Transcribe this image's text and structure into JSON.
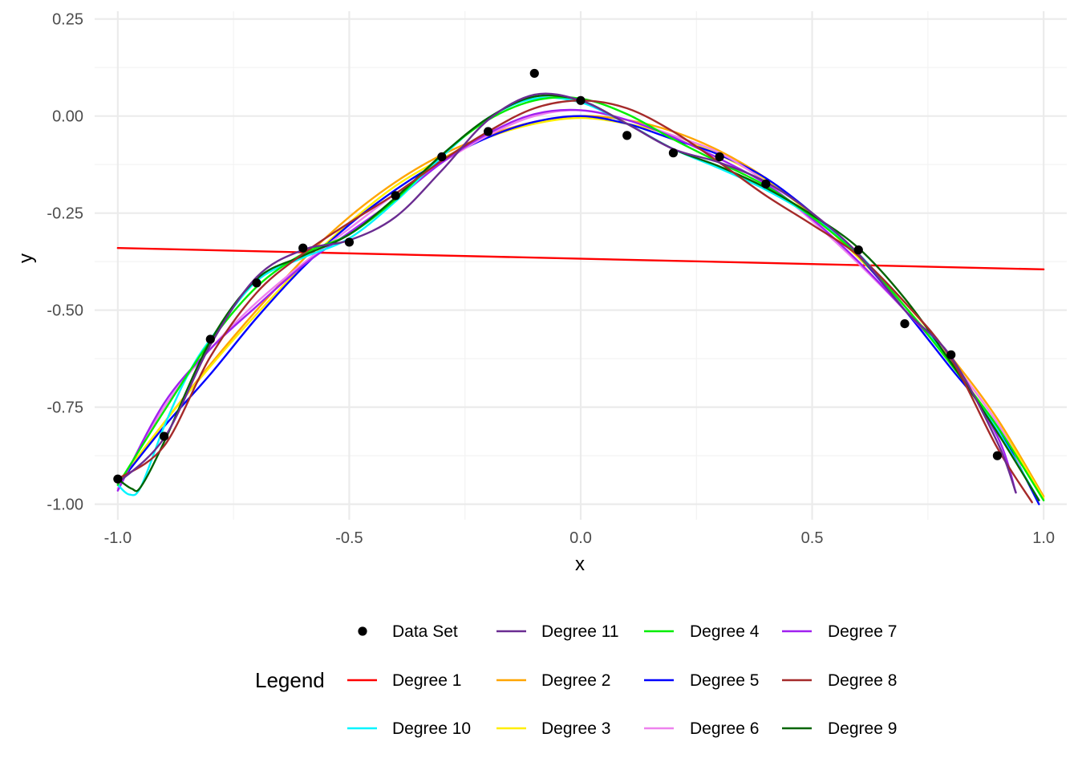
{
  "chart_data": {
    "type": "line",
    "xlabel": "x",
    "ylabel": "y",
    "xlim": [
      -1.05,
      1.05
    ],
    "ylim": [
      -1.04,
      0.27
    ],
    "x_ticks": [
      -1.0,
      -0.5,
      0.0,
      0.5,
      1.0
    ],
    "x_tick_labels": [
      "-1.0",
      "-0.5",
      "0.0",
      "0.5",
      "1.0"
    ],
    "y_ticks": [
      0.25,
      0.0,
      -0.25,
      -0.5,
      -0.75,
      -1.0
    ],
    "y_tick_labels": [
      "0.25",
      "0.00",
      "-0.25",
      "-0.50",
      "-0.75",
      "-1.00"
    ],
    "grid": true,
    "legend": {
      "title": "Legend",
      "position": "bottom",
      "entries": [
        {
          "label": "Data Set",
          "kind": "point",
          "color": "#000000"
        },
        {
          "label": "Degree 11",
          "kind": "line",
          "color": "#6a2c91"
        },
        {
          "label": "Degree 4",
          "kind": "line",
          "color": "#00ee00"
        },
        {
          "label": "Degree 7",
          "kind": "line",
          "color": "#a020f0"
        },
        {
          "label": "Degree 1",
          "kind": "line",
          "color": "#ff0000"
        },
        {
          "label": "Degree 2",
          "kind": "line",
          "color": "#ffa500"
        },
        {
          "label": "Degree 5",
          "kind": "line",
          "color": "#0000ff"
        },
        {
          "label": "Degree 8",
          "kind": "line",
          "color": "#a52a2a"
        },
        {
          "label": "Degree 10",
          "kind": "line",
          "color": "#00f5ff"
        },
        {
          "label": "Degree 3",
          "kind": "line",
          "color": "#ffee00"
        },
        {
          "label": "Degree 6",
          "kind": "line",
          "color": "#ee82ee"
        },
        {
          "label": "Degree 9",
          "kind": "line",
          "color": "#006400"
        }
      ]
    },
    "points": [
      {
        "x": -1.0,
        "y": -0.935
      },
      {
        "x": -0.9,
        "y": -0.825
      },
      {
        "x": -0.8,
        "y": -0.575
      },
      {
        "x": -0.7,
        "y": -0.43
      },
      {
        "x": -0.6,
        "y": -0.34
      },
      {
        "x": -0.5,
        "y": -0.325
      },
      {
        "x": -0.4,
        "y": -0.205
      },
      {
        "x": -0.3,
        "y": -0.105
      },
      {
        "x": -0.2,
        "y": -0.04
      },
      {
        "x": -0.1,
        "y": 0.11
      },
      {
        "x": 0.0,
        "y": 0.04
      },
      {
        "x": 0.1,
        "y": -0.05
      },
      {
        "x": 0.2,
        "y": -0.095
      },
      {
        "x": 0.3,
        "y": -0.105
      },
      {
        "x": 0.4,
        "y": -0.175
      },
      {
        "x": 0.6,
        "y": -0.345
      },
      {
        "x": 0.7,
        "y": -0.535
      },
      {
        "x": 0.8,
        "y": -0.615
      },
      {
        "x": 0.9,
        "y": -0.875
      }
    ],
    "series": [
      {
        "name": "Degree 1",
        "color": "#ff0000",
        "x": [
          -1.0,
          1.0
        ],
        "y": [
          -0.34,
          -0.395
        ]
      },
      {
        "name": "Degree 2",
        "color": "#ffa500",
        "x": [
          -1.0,
          -0.9,
          -0.8,
          -0.7,
          -0.6,
          -0.5,
          -0.4,
          -0.3,
          -0.2,
          -0.1,
          0.0,
          0.1,
          0.2,
          0.3,
          0.4,
          0.5,
          0.6,
          0.7,
          0.8,
          0.9,
          1.0
        ],
        "y": [
          -0.95,
          -0.79,
          -0.64,
          -0.5,
          -0.37,
          -0.26,
          -0.17,
          -0.1,
          -0.05,
          -0.015,
          0.0,
          -0.01,
          -0.04,
          -0.09,
          -0.16,
          -0.25,
          -0.36,
          -0.48,
          -0.62,
          -0.78,
          -0.98
        ]
      },
      {
        "name": "Degree 3",
        "color": "#ffee00",
        "x": [
          -1.0,
          -0.9,
          -0.8,
          -0.7,
          -0.6,
          -0.5,
          -0.4,
          -0.3,
          -0.2,
          -0.1,
          0.0,
          0.1,
          0.2,
          0.3,
          0.4,
          0.5,
          0.6,
          0.7,
          0.8,
          0.9,
          1.0
        ],
        "y": [
          -0.945,
          -0.79,
          -0.645,
          -0.51,
          -0.385,
          -0.275,
          -0.18,
          -0.11,
          -0.055,
          -0.02,
          -0.005,
          -0.02,
          -0.05,
          -0.1,
          -0.165,
          -0.255,
          -0.365,
          -0.49,
          -0.63,
          -0.79,
          -0.985
        ]
      },
      {
        "name": "Degree 4",
        "color": "#00ee00",
        "x": [
          -1.0,
          -0.9,
          -0.8,
          -0.7,
          -0.6,
          -0.5,
          -0.4,
          -0.3,
          -0.2,
          -0.1,
          0.0,
          0.1,
          0.2,
          0.3,
          0.4,
          0.5,
          0.6,
          0.7,
          0.8,
          0.9,
          1.0
        ],
        "y": [
          -0.95,
          -0.76,
          -0.58,
          -0.44,
          -0.355,
          -0.305,
          -0.215,
          -0.1,
          -0.01,
          0.04,
          0.045,
          0.005,
          -0.06,
          -0.12,
          -0.18,
          -0.26,
          -0.36,
          -0.49,
          -0.64,
          -0.8,
          -0.99
        ]
      },
      {
        "name": "Degree 5",
        "color": "#0000ff",
        "x": [
          -1.0,
          -0.9,
          -0.8,
          -0.7,
          -0.6,
          -0.5,
          -0.4,
          -0.3,
          -0.2,
          -0.1,
          0.0,
          0.1,
          0.2,
          0.3,
          0.4,
          0.5,
          0.6,
          0.7,
          0.8,
          0.9,
          0.99
        ],
        "y": [
          -0.95,
          -0.8,
          -0.665,
          -0.52,
          -0.39,
          -0.28,
          -0.19,
          -0.115,
          -0.055,
          -0.015,
          0.0,
          -0.02,
          -0.06,
          -0.1,
          -0.16,
          -0.25,
          -0.36,
          -0.5,
          -0.65,
          -0.8,
          -1.0
        ]
      },
      {
        "name": "Degree 6",
        "color": "#ee82ee",
        "x": [
          -1.0,
          -0.9,
          -0.8,
          -0.7,
          -0.6,
          -0.5,
          -0.4,
          -0.3,
          -0.2,
          -0.1,
          0.0,
          0.1,
          0.2,
          0.3,
          0.4,
          0.5,
          0.6,
          0.7,
          0.8,
          0.9,
          0.95
        ],
        "y": [
          -0.96,
          -0.75,
          -0.6,
          -0.48,
          -0.38,
          -0.29,
          -0.2,
          -0.12,
          -0.05,
          0.0,
          0.015,
          -0.01,
          -0.05,
          -0.095,
          -0.17,
          -0.27,
          -0.38,
          -0.5,
          -0.63,
          -0.79,
          -0.9
        ]
      },
      {
        "name": "Degree 7",
        "color": "#a020f0",
        "x": [
          -1.0,
          -0.9,
          -0.8,
          -0.7,
          -0.6,
          -0.5,
          -0.4,
          -0.3,
          -0.2,
          -0.1,
          0.0,
          0.1,
          0.2,
          0.3,
          0.4,
          0.5,
          0.6,
          0.7,
          0.8,
          0.9,
          0.94
        ],
        "y": [
          -0.965,
          -0.74,
          -0.6,
          -0.49,
          -0.385,
          -0.3,
          -0.215,
          -0.12,
          -0.045,
          0.005,
          0.015,
          -0.01,
          -0.055,
          -0.11,
          -0.175,
          -0.265,
          -0.375,
          -0.5,
          -0.635,
          -0.825,
          -0.97
        ]
      },
      {
        "name": "Degree 8",
        "color": "#a52a2a",
        "x": [
          -1.0,
          -0.9,
          -0.8,
          -0.7,
          -0.6,
          -0.5,
          -0.4,
          -0.3,
          -0.2,
          -0.1,
          0.0,
          0.1,
          0.2,
          0.3,
          0.4,
          0.5,
          0.6,
          0.7,
          0.8,
          0.9,
          0.975
        ],
        "y": [
          -0.935,
          -0.85,
          -0.62,
          -0.455,
          -0.355,
          -0.275,
          -0.2,
          -0.115,
          -0.04,
          0.02,
          0.04,
          0.02,
          -0.04,
          -0.12,
          -0.205,
          -0.28,
          -0.36,
          -0.48,
          -0.625,
          -0.855,
          -0.995
        ]
      },
      {
        "name": "Degree 9",
        "color": "#006400",
        "x": [
          -1.0,
          -0.97,
          -0.95,
          -0.9,
          -0.8,
          -0.7,
          -0.6,
          -0.5,
          -0.4,
          -0.3,
          -0.2,
          -0.1,
          0.0,
          0.1,
          0.2,
          0.3,
          0.4,
          0.5,
          0.6,
          0.7,
          0.8,
          0.9,
          0.99
        ],
        "y": [
          -0.935,
          -0.96,
          -0.955,
          -0.84,
          -0.58,
          -0.42,
          -0.36,
          -0.305,
          -0.21,
          -0.1,
          -0.005,
          0.05,
          0.04,
          -0.02,
          -0.085,
          -0.13,
          -0.185,
          -0.255,
          -0.34,
          -0.47,
          -0.635,
          -0.815,
          -0.99
        ]
      },
      {
        "name": "Degree 10",
        "color": "#00f5ff",
        "x": [
          -1.0,
          -0.975,
          -0.95,
          -0.9,
          -0.85,
          -0.8,
          -0.7,
          -0.6,
          -0.5,
          -0.4,
          -0.3,
          -0.2,
          -0.1,
          0.0,
          0.1,
          0.2,
          0.3,
          0.4,
          0.5,
          0.6,
          0.7,
          0.8,
          0.9,
          0.99
        ],
        "y": [
          -0.95,
          -0.975,
          -0.955,
          -0.8,
          -0.67,
          -0.575,
          -0.425,
          -0.365,
          -0.315,
          -0.22,
          -0.105,
          -0.005,
          0.045,
          0.035,
          -0.02,
          -0.085,
          -0.135,
          -0.19,
          -0.26,
          -0.355,
          -0.49,
          -0.635,
          -0.81,
          -0.99
        ]
      },
      {
        "name": "Degree 11",
        "color": "#6a2c91",
        "x": [
          -1.0,
          -0.9,
          -0.8,
          -0.7,
          -0.6,
          -0.5,
          -0.4,
          -0.3,
          -0.2,
          -0.1,
          0.0,
          0.1,
          0.2,
          0.3,
          0.4,
          0.5,
          0.6,
          0.7,
          0.8,
          0.9,
          0.94
        ],
        "y": [
          -0.945,
          -0.83,
          -0.59,
          -0.415,
          -0.345,
          -0.32,
          -0.26,
          -0.14,
          -0.01,
          0.055,
          0.04,
          -0.02,
          -0.085,
          -0.12,
          -0.17,
          -0.25,
          -0.355,
          -0.5,
          -0.62,
          -0.84,
          -0.97
        ]
      }
    ]
  }
}
